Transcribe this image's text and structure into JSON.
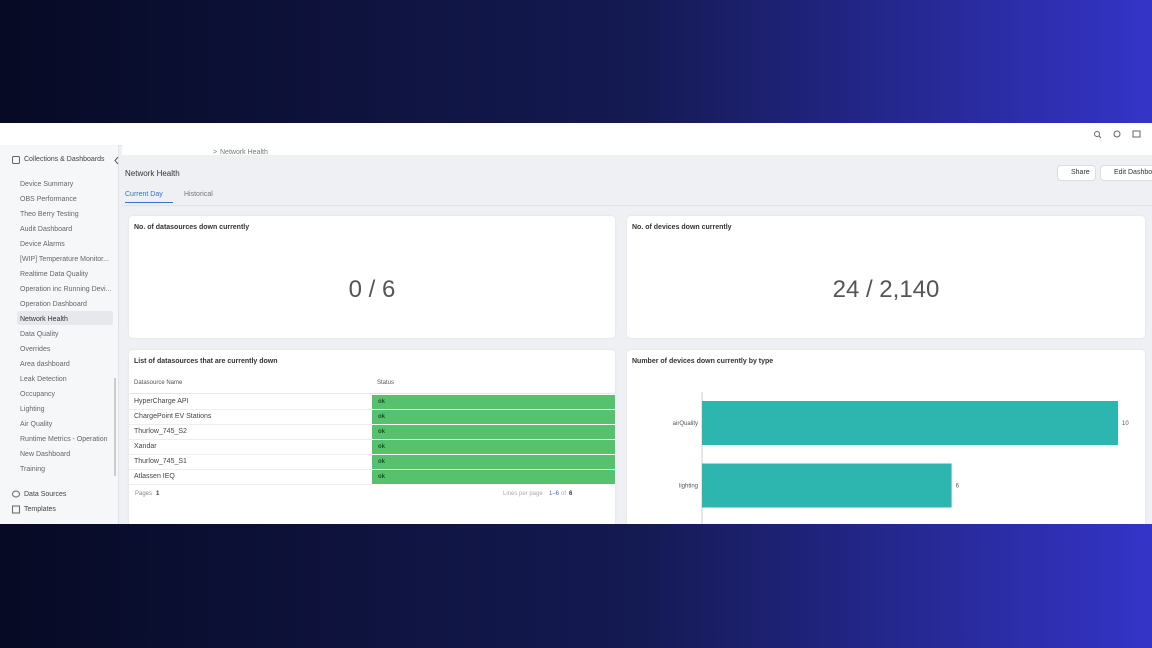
{
  "breadcrumb": "Network Health",
  "sidebar": {
    "header": "Collections & Dashboards",
    "items": [
      "Device Summary",
      "OBS Performance",
      "Theo Berry Testing",
      "Audit Dashboard",
      "Device Alarms",
      "[WIP] Temperature Monitor...",
      "Realtime Data Quality",
      "Operation inc Running Devi...",
      "Operation Dashboard",
      "Network Health",
      "Data Quality",
      "Overrides",
      "Area dashboard",
      "Leak Detection",
      "Occupancy",
      "Lighting",
      "Air Quality",
      "Runtime Metrics - Operation",
      "New Dashboard",
      "Training"
    ],
    "footer": [
      "Data Sources",
      "Templates"
    ]
  },
  "page": {
    "title": "Network Health",
    "tabs": [
      "Current Day",
      "Historical"
    ],
    "buttons": [
      "Share",
      "Edit Dashboard"
    ]
  },
  "cards": {
    "datasources_down": {
      "title": "No. of datasources down currently",
      "value": "0 / 6"
    },
    "devices_down": {
      "title": "No. of devices down currently",
      "value": "24 / 2,140"
    }
  },
  "table": {
    "title": "List of datasources that are currently down",
    "columns": [
      "Datasource Name",
      "Status"
    ],
    "rows": [
      [
        "HyperCharge API",
        "ok"
      ],
      [
        "ChargePoint EV Stations",
        "ok"
      ],
      [
        "Thurlow_745_S2",
        "ok"
      ],
      [
        "Xandar",
        "ok"
      ],
      [
        "Thurlow_745_S1",
        "ok"
      ],
      [
        "Atlassen IEQ",
        "ok"
      ]
    ],
    "footer": {
      "pages_label": "Pages",
      "pages": "1",
      "lines_label": "Lines per page",
      "range": "1–6",
      "of": "of",
      "total": "6"
    }
  },
  "chart_data": {
    "type": "bar",
    "orientation": "horizontal",
    "title": "Number of devices down currently by type",
    "categories": [
      "airQuality",
      "lighting"
    ],
    "values": [
      10,
      6
    ],
    "color": "#2db5b0"
  }
}
